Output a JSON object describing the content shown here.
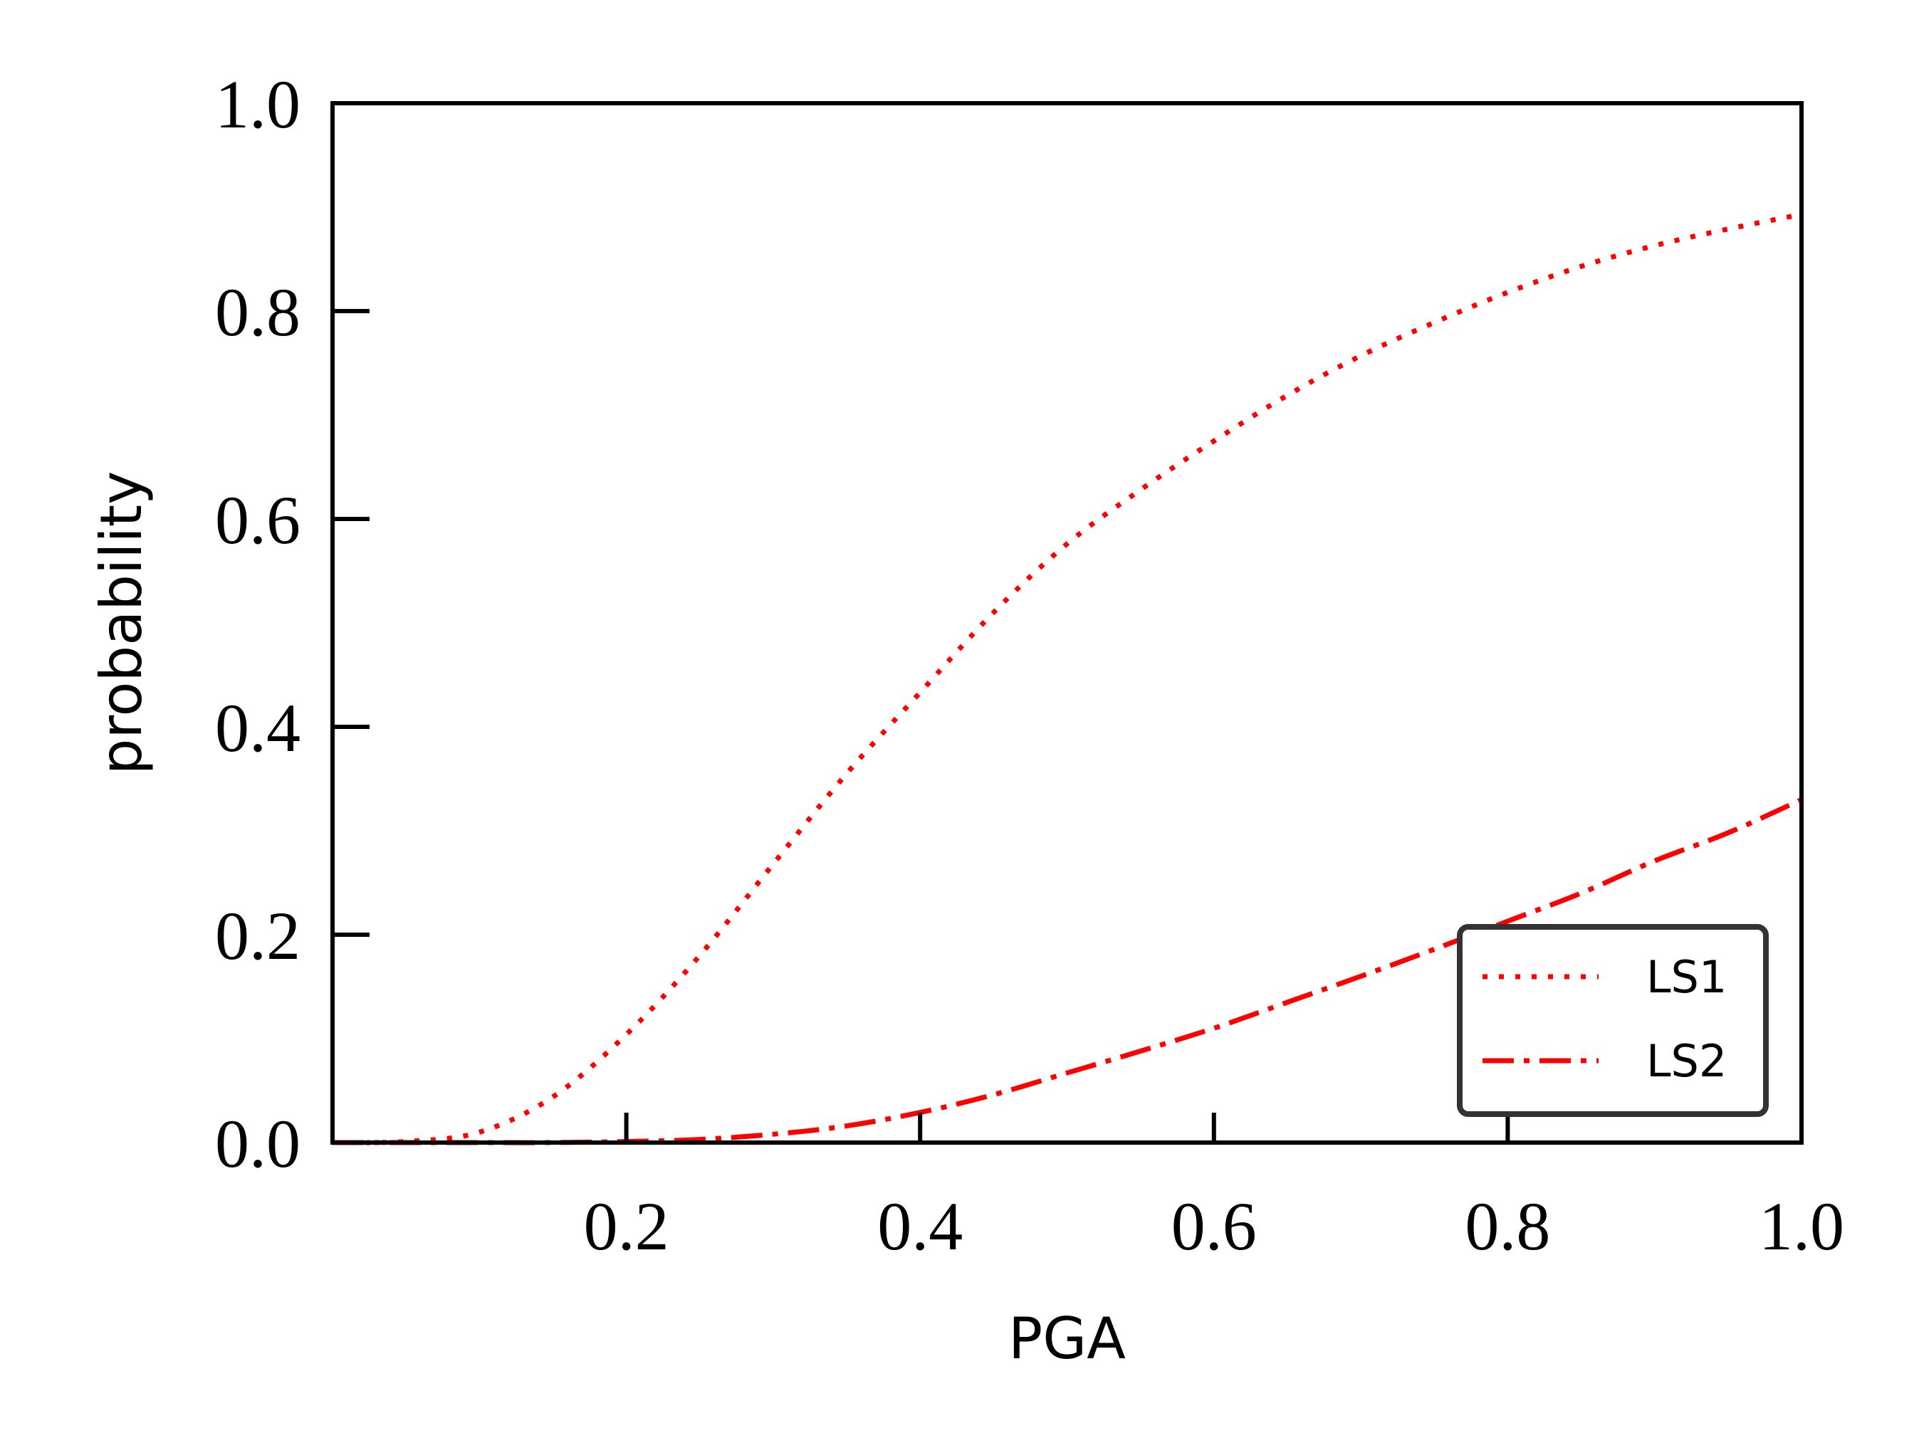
{
  "chart_data": {
    "type": "line",
    "title": "",
    "xlabel": "PGA",
    "ylabel": "probability",
    "xlim": [
      0.0,
      1.0
    ],
    "ylim": [
      0.0,
      1.0
    ],
    "xticks": [
      0.2,
      0.4,
      0.6,
      0.8,
      1.0
    ],
    "xtick_labels": [
      "0.2",
      "0.4",
      "0.6",
      "0.8",
      "1.0"
    ],
    "yticks": [
      0.0,
      0.2,
      0.4,
      0.6,
      0.8,
      1.0
    ],
    "ytick_labels": [
      "0.0",
      "0.2",
      "0.4",
      "0.6",
      "0.8",
      "1.0"
    ],
    "grid": false,
    "legend": {
      "position": "lower-right"
    },
    "x": [
      0.0,
      0.05,
      0.1,
      0.15,
      0.2,
      0.25,
      0.3,
      0.35,
      0.4,
      0.45,
      0.5,
      0.55,
      0.6,
      0.65,
      0.7,
      0.75,
      0.8,
      0.85,
      0.9,
      0.95,
      1.0
    ],
    "series": [
      {
        "name": "LS1",
        "color": "#ff0000",
        "style": "dotted",
        "values": [
          0.0,
          0.001,
          0.01,
          0.044,
          0.104,
          0.18,
          0.268,
          0.355,
          0.433,
          0.51,
          0.576,
          0.628,
          0.675,
          0.719,
          0.757,
          0.789,
          0.818,
          0.843,
          0.863,
          0.879,
          0.893
        ]
      },
      {
        "name": "LS2",
        "color": "#ff0000",
        "style": "dashdot",
        "values": [
          0.0,
          0.0,
          0.0,
          0.0,
          0.001,
          0.003,
          0.008,
          0.016,
          0.029,
          0.046,
          0.067,
          0.088,
          0.11,
          0.135,
          0.16,
          0.186,
          0.213,
          0.24,
          0.271,
          0.298,
          0.33
        ]
      }
    ]
  }
}
